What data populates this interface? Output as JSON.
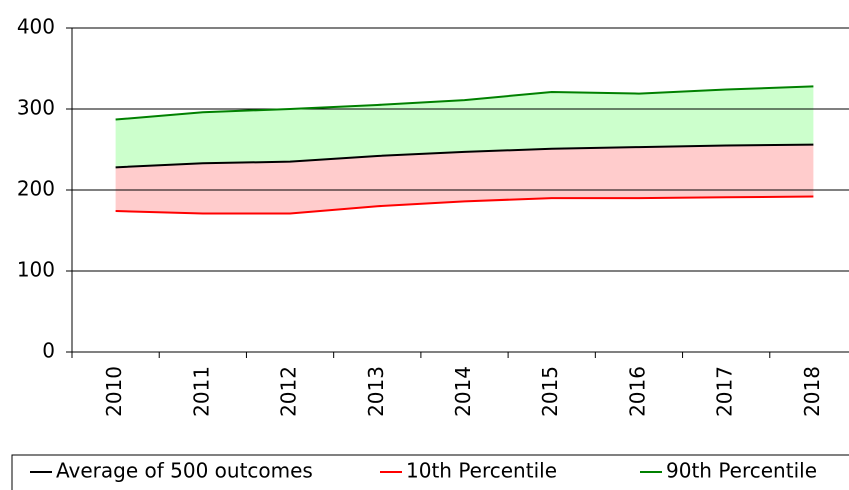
{
  "chart_data": {
    "type": "line",
    "categories": [
      "2010",
      "2011",
      "2012",
      "2013",
      "2014",
      "2015",
      "2016",
      "2017",
      "2018"
    ],
    "series": [
      {
        "name": "Average of 500 outcomes",
        "color": "#000000",
        "values": [
          228,
          233,
          235,
          242,
          247,
          251,
          253,
          255,
          256
        ]
      },
      {
        "name": "10th Percentile",
        "color": "#ff0000",
        "values": [
          174,
          171,
          171,
          180,
          186,
          190,
          190,
          191,
          192
        ]
      },
      {
        "name": "90th Percentile",
        "color": "#008000",
        "values": [
          287,
          296,
          300,
          305,
          311,
          321,
          319,
          324,
          328
        ]
      }
    ],
    "ylim": [
      0,
      400
    ],
    "yticks": [
      0,
      100,
      200,
      300,
      400
    ],
    "grid": true,
    "legend": "bottom"
  }
}
